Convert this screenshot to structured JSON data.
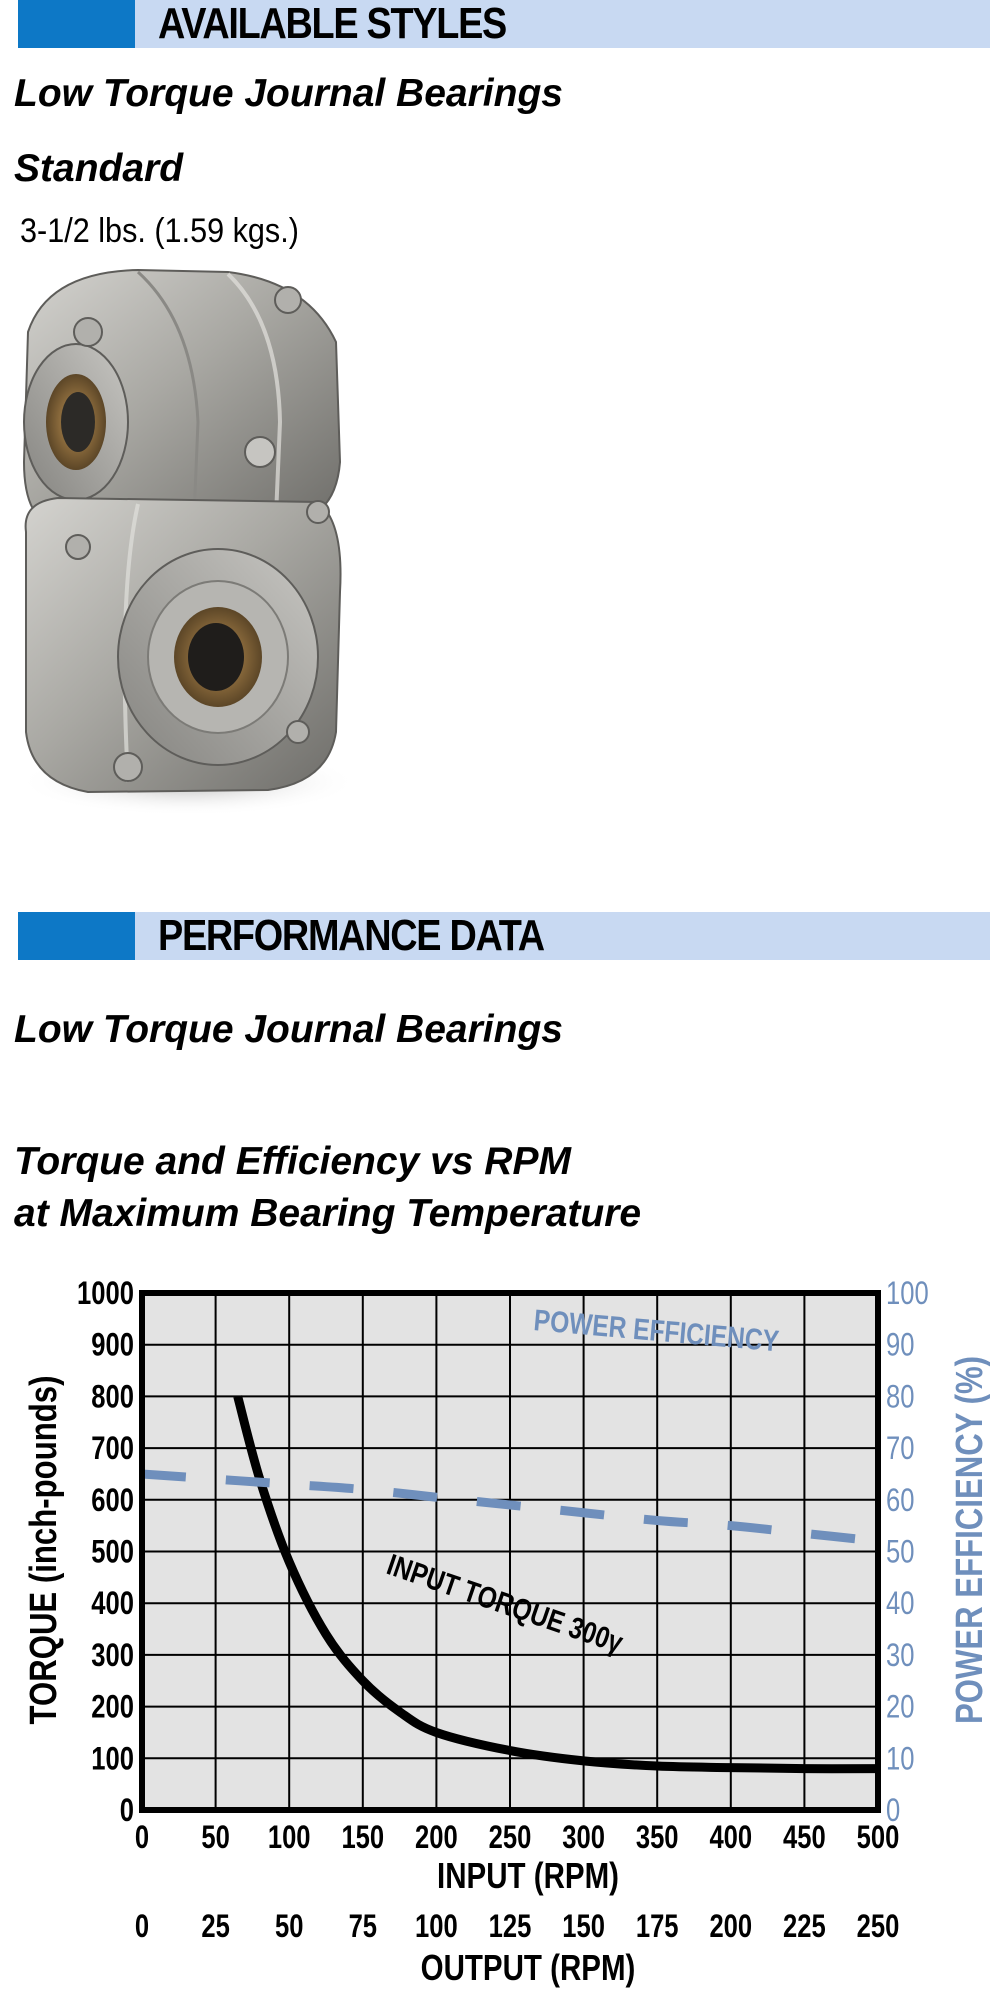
{
  "available": {
    "header": "AVAILABLE STYLES",
    "subtitle": "Low Torque Journal Bearings",
    "style_name": "Standard",
    "weight": "3-1/2 lbs.  (1.59 kgs.)"
  },
  "performance": {
    "header": "PERFORMANCE DATA",
    "subtitle": "Low Torque Journal Bearings",
    "chart_title_line1": "Torque and Efficiency vs RPM",
    "chart_title_line2": "at Maximum Bearing Temperature"
  },
  "colors": {
    "band": "#c8d9f2",
    "band_blocks": "#0d78c6",
    "plot_bg": "#e3e3e3",
    "efficiency": "#6f8fbc"
  },
  "chart_data": {
    "type": "line",
    "title": "Torque and Efficiency vs RPM at Maximum Bearing Temperature",
    "xlabel": "INPUT (RPM)",
    "xlabel2": "OUTPUT (RPM)",
    "ylabel": "TORQUE (inch-pounds)",
    "ylabel2": "POWER EFFICIENCY (%)",
    "xlim": [
      0,
      500
    ],
    "ylim": [
      0,
      1000
    ],
    "y2lim": [
      0,
      100
    ],
    "grid": true,
    "x_ticks": [
      "0",
      "50",
      "100",
      "150",
      "200",
      "250",
      "300",
      "350",
      "400",
      "450",
      "500"
    ],
    "x2_ticks": [
      "0",
      "25",
      "50",
      "75",
      "100",
      "125",
      "150",
      "175",
      "200",
      "225",
      "250"
    ],
    "y_ticks": [
      "0",
      "100",
      "200",
      "300",
      "400",
      "500",
      "600",
      "700",
      "800",
      "900",
      "1000"
    ],
    "y2_ticks": [
      "0",
      "10",
      "20",
      "30",
      "40",
      "50",
      "60",
      "70",
      "80",
      "90",
      "100"
    ],
    "series": [
      {
        "name": "INPUT TORQUE 300γ",
        "axis": "left",
        "style": "solid",
        "x": [
          65,
          80,
          100,
          125,
          150,
          175,
          200,
          250,
          300,
          350,
          400,
          450,
          500
        ],
        "y": [
          800,
          640,
          480,
          340,
          250,
          190,
          150,
          115,
          95,
          85,
          82,
          80,
          80
        ]
      },
      {
        "name": "POWER EFFICIENCY",
        "axis": "right",
        "style": "dashed",
        "x": [
          0,
          50,
          100,
          150,
          200,
          250,
          300,
          350,
          400,
          450,
          500
        ],
        "y": [
          65,
          64,
          63,
          62,
          60.5,
          59,
          57.5,
          56,
          55,
          53.5,
          52
        ]
      }
    ]
  }
}
